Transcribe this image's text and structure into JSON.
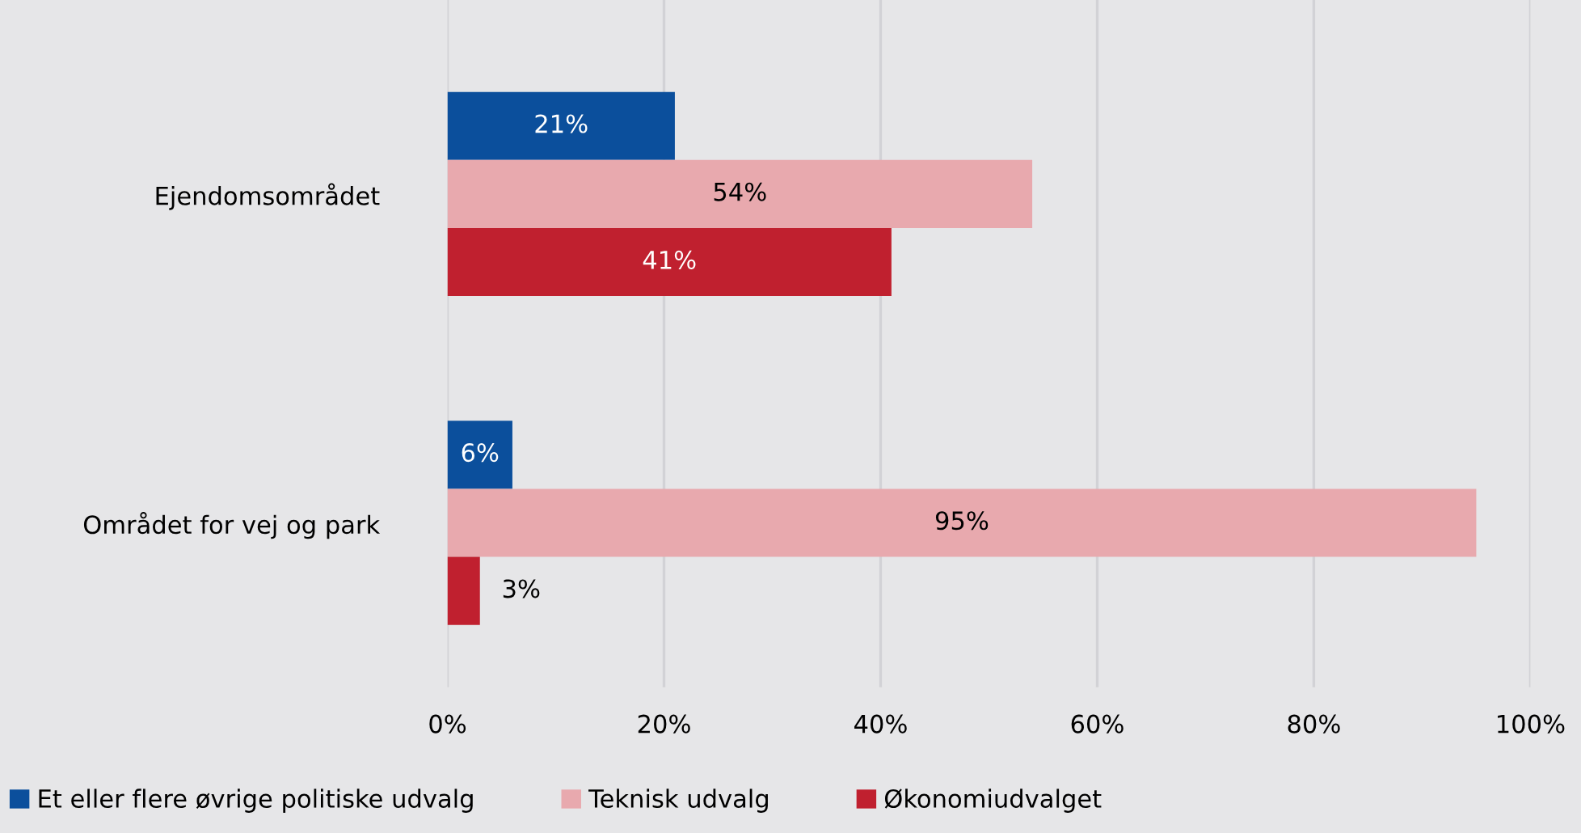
{
  "chart_data": {
    "type": "bar",
    "orientation": "horizontal",
    "categories": [
      "Ejendomsområdet",
      "Området for vej og park"
    ],
    "series": [
      {
        "name": "Et eller flere øvrige politiske udvalg",
        "color": "#0b4f9c",
        "values": [
          21,
          6
        ],
        "value_labels": [
          "21%",
          "6%"
        ]
      },
      {
        "name": "Teknisk udvalg",
        "color": "#e8a9ae",
        "values": [
          54,
          95
        ],
        "value_labels": [
          "54%",
          "95%"
        ]
      },
      {
        "name": "Økonomiudvalget",
        "color": "#c0202f",
        "values": [
          41,
          3
        ],
        "value_labels": [
          "41%",
          "3%"
        ]
      }
    ],
    "xlim": [
      0,
      100
    ],
    "xticks": [
      {
        "value": 0,
        "label": "0%"
      },
      {
        "value": 20,
        "label": "20%"
      },
      {
        "value": 40,
        "label": "40%"
      },
      {
        "value": 60,
        "label": "60%"
      },
      {
        "value": 80,
        "label": "80%"
      },
      {
        "value": 100,
        "label": "100%"
      }
    ],
    "grid": "x",
    "legend": "bottom"
  }
}
